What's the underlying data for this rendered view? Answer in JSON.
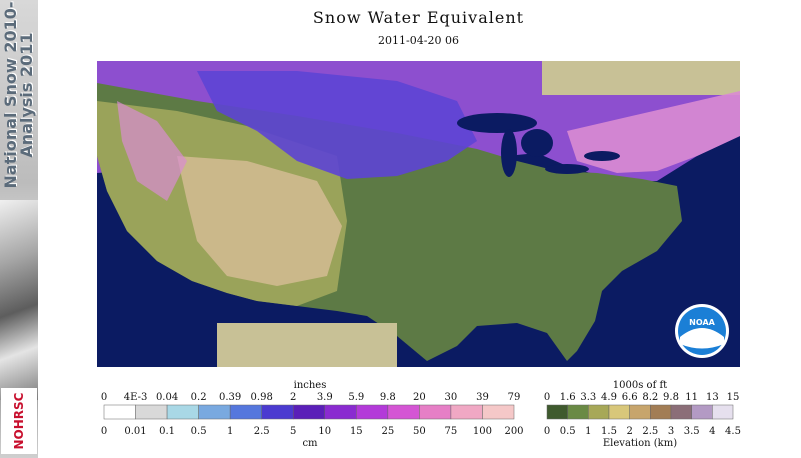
{
  "sidebar": {
    "vertical_text_line1": "National Snow 2010-",
    "vertical_text_line2": "Analysis 2011",
    "logo_text": "NOHRSC"
  },
  "header": {
    "title": "Snow Water Equivalent",
    "timestamp": "2011-04-20 06"
  },
  "map": {
    "noaa_logo_text": "NOAA",
    "colors": {
      "ocean": "#0b1b62",
      "no_data": "#c8c196",
      "low_land": "#5d7a45",
      "mid_land": "#9aa35a",
      "high_land": "#cbb88a"
    }
  },
  "legend_swe": {
    "unit_top": "inches",
    "unit_bottom": "cm",
    "top_ticks": [
      "0",
      "4E-3",
      "0.04",
      "0.2",
      "0.39",
      "0.98",
      "2",
      "3.9",
      "5.9",
      "9.8",
      "20",
      "30",
      "39",
      "79"
    ],
    "bottom_ticks": [
      "0",
      "0.01",
      "0.1",
      "0.5",
      "1",
      "2.5",
      "5",
      "10",
      "15",
      "25",
      "50",
      "75",
      "100",
      "200"
    ],
    "colors": [
      "#ffffff",
      "#d9d9d9",
      "#a9d8e6",
      "#79a9e0",
      "#5577dd",
      "#4b3bd0",
      "#5a1fb8",
      "#8a2bd0",
      "#b33ad9",
      "#d455d4",
      "#e67fc6",
      "#f0a8c4",
      "#f5c8c8"
    ]
  },
  "legend_elev": {
    "unit_top": "1000s of ft",
    "unit_bottom": "Elevation (km)",
    "top_ticks": [
      "0",
      "1.6",
      "3.3",
      "4.9",
      "6.6",
      "8.2",
      "9.8",
      "11",
      "13",
      "15"
    ],
    "bottom_ticks": [
      "0",
      "0.5",
      "1",
      "1.5",
      "2",
      "2.5",
      "3",
      "3.5",
      "4",
      "4.5"
    ],
    "colors": [
      "#3f5a2e",
      "#6a8a45",
      "#a7a858",
      "#d8c77a",
      "#c7a56c",
      "#a27d55",
      "#8b6e78",
      "#b39ac4",
      "#e6e0ee"
    ]
  }
}
